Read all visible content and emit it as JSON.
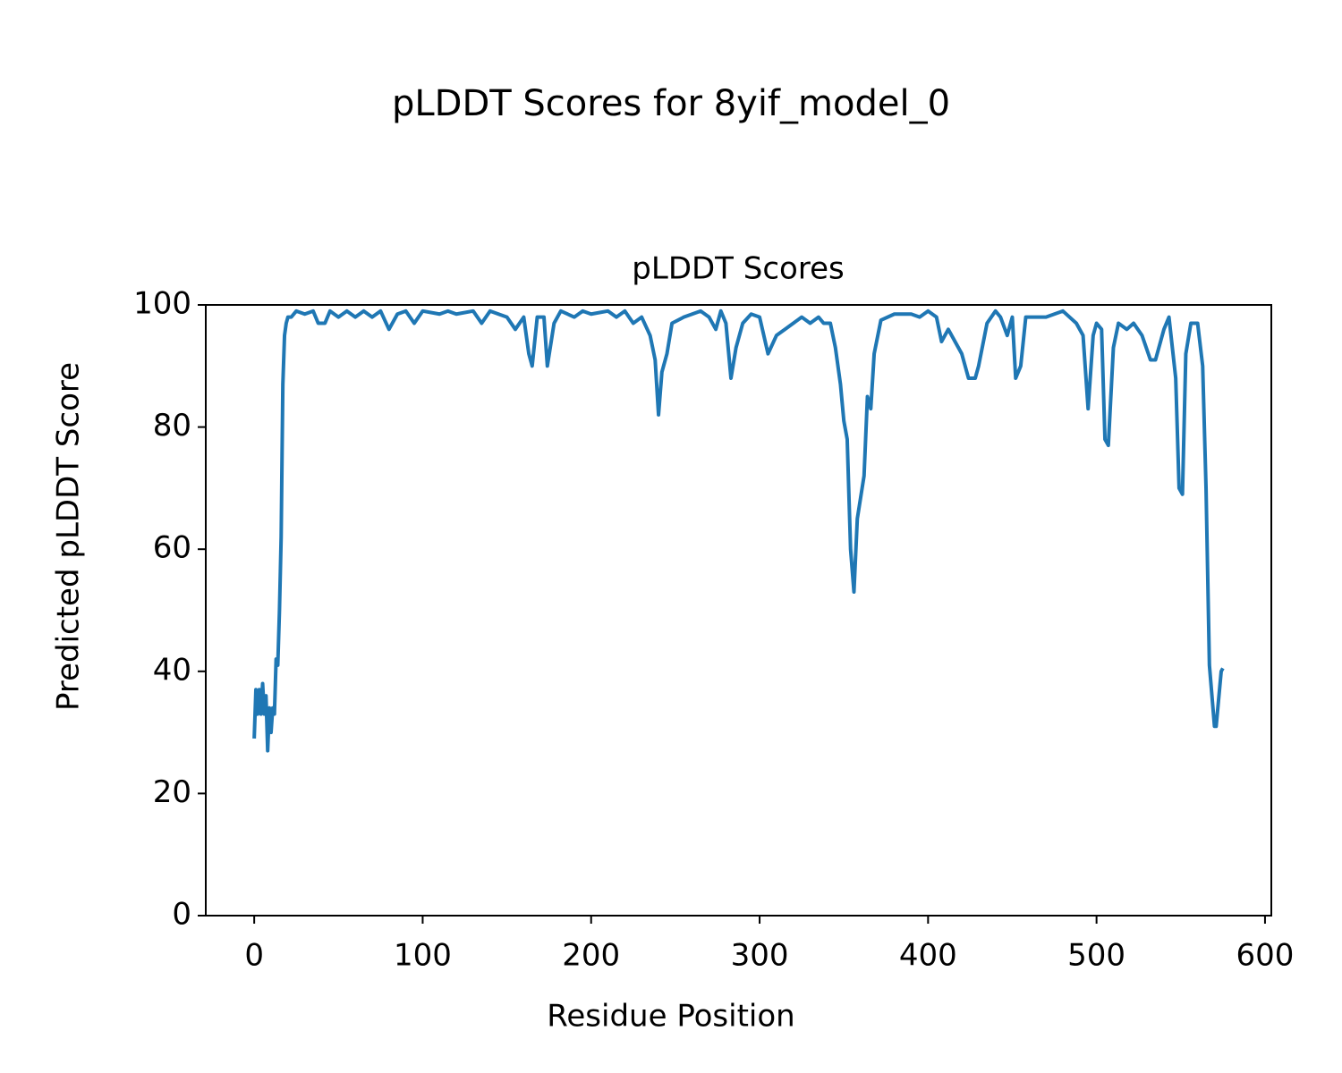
{
  "chart_data": {
    "type": "line",
    "title": "pLDDT Scores for 8yif_model_0",
    "subtitle": "pLDDT Scores",
    "x_label": "Residue Position",
    "y_label": "Predicted pLDDT Score",
    "x": [
      0,
      1,
      2,
      3,
      4,
      5,
      6,
      7,
      8,
      9,
      10,
      11,
      12,
      13,
      14,
      15,
      16,
      17,
      18,
      19,
      20,
      22,
      25,
      30,
      35,
      38,
      42,
      45,
      50,
      55,
      60,
      65,
      70,
      75,
      80,
      85,
      90,
      95,
      100,
      110,
      115,
      120,
      130,
      135,
      140,
      150,
      155,
      160,
      163,
      165,
      168,
      172,
      174,
      178,
      182,
      190,
      195,
      200,
      210,
      215,
      220,
      225,
      230,
      235,
      238,
      240,
      242,
      245,
      248,
      255,
      265,
      270,
      274,
      277,
      280,
      283,
      286,
      290,
      295,
      300,
      305,
      310,
      315,
      320,
      325,
      330,
      335,
      338,
      342,
      345,
      348,
      350,
      352,
      354,
      356,
      358,
      362,
      364,
      366,
      368,
      372,
      380,
      390,
      395,
      400,
      405,
      408,
      412,
      416,
      420,
      424,
      428,
      430,
      435,
      440,
      443,
      447,
      450,
      452,
      455,
      458,
      465,
      470,
      480,
      488,
      492,
      495,
      498,
      500,
      503,
      505,
      507,
      510,
      513,
      518,
      522,
      527,
      532,
      535,
      540,
      543,
      547,
      549,
      551,
      553,
      556,
      560,
      563,
      565,
      567,
      570,
      571,
      572,
      574,
      575
    ],
    "series": [
      {
        "name": "pLDDT",
        "color": "#1f77b4",
        "values": [
          29,
          37,
          33,
          37,
          33,
          38,
          33,
          36,
          27,
          34,
          30,
          34,
          33,
          42,
          41,
          50,
          62,
          87,
          95,
          97,
          98,
          98,
          99,
          98.5,
          99,
          97,
          97,
          99,
          98,
          99,
          98,
          99,
          98,
          99,
          96,
          98.5,
          99,
          97,
          99,
          98.5,
          99,
          98.5,
          99,
          97,
          99,
          98,
          96,
          98,
          92,
          90,
          98,
          98,
          90,
          97,
          99,
          98,
          99,
          98.5,
          99,
          98,
          99,
          97,
          98,
          95,
          91,
          82,
          89,
          92,
          97,
          98,
          99,
          98,
          96,
          99,
          97,
          88,
          93,
          97,
          98.5,
          98,
          92,
          95,
          96,
          97,
          98,
          97,
          98,
          97,
          97,
          93,
          87,
          81,
          78,
          60,
          53,
          65,
          72,
          85,
          83,
          92,
          97.5,
          98.5,
          98.5,
          98,
          99,
          98,
          94,
          96,
          94,
          92,
          88,
          88,
          90,
          97,
          99,
          98,
          95,
          98,
          88,
          90,
          98,
          98,
          98,
          99,
          97,
          95,
          83,
          95,
          97,
          96,
          78,
          77,
          93,
          97,
          96,
          97,
          95,
          91,
          91,
          96,
          98,
          88,
          70,
          69,
          92,
          97,
          97,
          90,
          70,
          41,
          31,
          31,
          34,
          40,
          40.5
        ]
      }
    ],
    "xlim": [
      -28.75,
      603.75
    ],
    "ylim": [
      0,
      100
    ],
    "xticks": [
      0,
      100,
      200,
      300,
      400,
      500,
      600
    ],
    "yticks": [
      0,
      20,
      40,
      60,
      80,
      100
    ],
    "grid": false
  }
}
